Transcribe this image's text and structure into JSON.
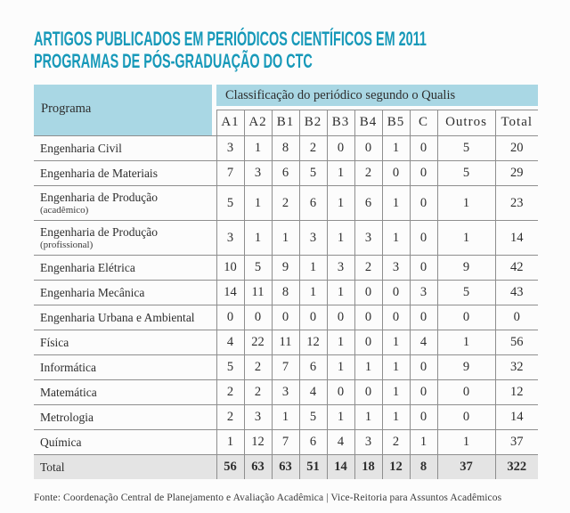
{
  "title": {
    "line1": "ARTIGOS PUBLICADOS EM PERIÓDICOS CIENTÍFICOS EM 2011",
    "line2": "PROGRAMAS DE PÓS-GRADUAÇÃO DO CTC"
  },
  "colors": {
    "accent": "#1799b9",
    "header_bg": "#a9d7e4",
    "border": "#8e8e8e",
    "total_row_bg": "#e4e4e4"
  },
  "table": {
    "program_header": "Programa",
    "qualis_header": "Classificação do periódico segundo o Qualis",
    "columns": [
      "A1",
      "A2",
      "B1",
      "B2",
      "B3",
      "B4",
      "B5",
      "C",
      "Outros",
      "Total"
    ],
    "rows": [
      {
        "program": "Engenharia Civil",
        "note": "",
        "values": [
          3,
          1,
          8,
          2,
          0,
          0,
          1,
          0,
          5,
          20
        ]
      },
      {
        "program": "Engenharia de Materiais",
        "note": "",
        "values": [
          7,
          3,
          6,
          5,
          1,
          2,
          0,
          0,
          5,
          29
        ]
      },
      {
        "program": "Engenharia de Produção",
        "note": "(acadêmico)",
        "values": [
          5,
          1,
          2,
          6,
          1,
          6,
          1,
          0,
          1,
          23
        ]
      },
      {
        "program": "Engenharia de Produção",
        "note": "(profissional)",
        "values": [
          3,
          1,
          1,
          3,
          1,
          3,
          1,
          0,
          1,
          14
        ]
      },
      {
        "program": "Engenharia Elétrica",
        "note": "",
        "values": [
          10,
          5,
          9,
          1,
          3,
          2,
          3,
          0,
          9,
          42
        ]
      },
      {
        "program": "Engenharia Mecânica",
        "note": "",
        "values": [
          14,
          11,
          8,
          1,
          1,
          0,
          0,
          3,
          5,
          43
        ]
      },
      {
        "program": "Engenharia Urbana e Ambiental",
        "note": "",
        "values": [
          0,
          0,
          0,
          0,
          0,
          0,
          0,
          0,
          0,
          0
        ]
      },
      {
        "program": "Física",
        "note": "",
        "values": [
          4,
          22,
          11,
          12,
          1,
          0,
          1,
          4,
          1,
          56
        ]
      },
      {
        "program": "Informática",
        "note": "",
        "values": [
          5,
          2,
          7,
          6,
          1,
          1,
          1,
          0,
          9,
          32
        ]
      },
      {
        "program": "Matemática",
        "note": "",
        "values": [
          2,
          2,
          3,
          4,
          0,
          0,
          1,
          0,
          0,
          12
        ]
      },
      {
        "program": "Metrologia",
        "note": "",
        "values": [
          2,
          3,
          1,
          5,
          1,
          1,
          1,
          0,
          0,
          14
        ]
      },
      {
        "program": "Química",
        "note": "",
        "values": [
          1,
          12,
          7,
          6,
          4,
          3,
          2,
          1,
          1,
          37
        ]
      }
    ],
    "total_row": {
      "label": "Total",
      "values": [
        56,
        63,
        63,
        51,
        14,
        18,
        12,
        8,
        37,
        322
      ]
    }
  },
  "footer": "Fonte: Coordenação Central de Planejamento e Avaliação Acadêmica | Vice-Reitoria para Assuntos Acadêmicos"
}
